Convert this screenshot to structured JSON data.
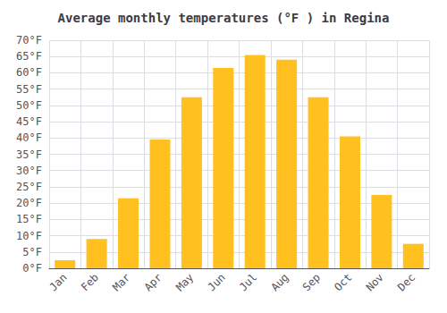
{
  "chart_data": {
    "type": "bar",
    "title": "Average monthly temperatures (°F ) in Regina",
    "categories": [
      "Jan",
      "Feb",
      "Mar",
      "Apr",
      "May",
      "Jun",
      "Jul",
      "Aug",
      "Sep",
      "Oct",
      "Nov",
      "Dec"
    ],
    "values": [
      2.5,
      9,
      21.5,
      39.5,
      52.5,
      61.5,
      65.5,
      64,
      52.5,
      40.5,
      22.5,
      7.5
    ],
    "color": "#FFC020",
    "ylim": [
      0,
      70
    ],
    "yticks": [
      {
        "value": 0,
        "label": "0°F"
      },
      {
        "value": 5,
        "label": "5°F"
      },
      {
        "value": 10,
        "label": "10°F"
      },
      {
        "value": 15,
        "label": "15°F"
      },
      {
        "value": 20,
        "label": "20°F"
      },
      {
        "value": 25,
        "label": "25°F"
      },
      {
        "value": 30,
        "label": "30°F"
      },
      {
        "value": 35,
        "label": "35°F"
      },
      {
        "value": 40,
        "label": "40°F"
      },
      {
        "value": 45,
        "label": "45°F"
      },
      {
        "value": 50,
        "label": "50°F"
      },
      {
        "value": 55,
        "label": "55°F"
      },
      {
        "value": 60,
        "label": "60°F"
      },
      {
        "value": 65,
        "label": "65°F"
      },
      {
        "value": 70,
        "label": "70°F"
      }
    ],
    "grid": true
  }
}
